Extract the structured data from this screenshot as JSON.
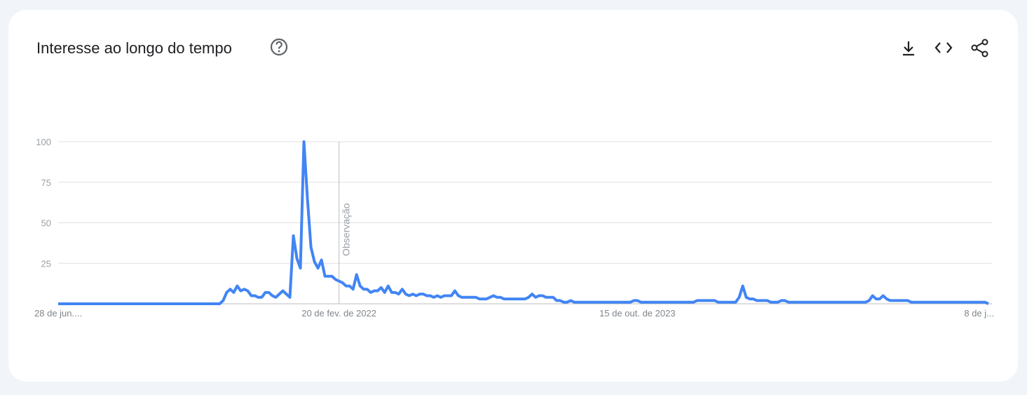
{
  "chart_data": {
    "type": "line",
    "title": "Interesse ao longo do tempo",
    "categories": [
      "28 de jun....",
      null,
      null,
      null,
      null,
      null,
      null,
      null,
      null,
      null,
      null,
      null,
      null,
      null,
      null,
      null,
      null,
      null,
      null,
      null,
      null,
      null,
      null,
      null,
      null,
      null,
      null,
      null,
      null,
      null,
      null,
      null,
      null,
      null,
      null,
      null,
      null,
      null,
      null,
      null,
      null,
      null,
      null,
      null,
      null,
      null,
      null,
      null,
      null,
      null,
      null,
      null,
      null,
      null,
      null,
      null,
      null,
      null,
      null,
      null,
      null,
      null,
      null,
      null,
      null,
      null,
      null,
      null,
      null,
      null,
      null,
      null,
      null,
      null,
      null,
      null,
      null,
      null,
      null,
      null,
      "20 de fev. de 2022",
      null,
      null,
      null,
      null,
      null,
      null,
      null,
      null,
      null,
      null,
      null,
      null,
      null,
      null,
      null,
      null,
      null,
      null,
      null,
      null,
      null,
      null,
      null,
      null,
      null,
      null,
      null,
      null,
      null,
      null,
      null,
      null,
      null,
      null,
      null,
      null,
      null,
      null,
      null,
      null,
      null,
      null,
      null,
      null,
      null,
      null,
      null,
      null,
      null,
      null,
      null,
      null,
      null,
      null,
      null,
      null,
      null,
      null,
      null,
      null,
      null,
      null,
      null,
      null,
      null,
      null,
      null,
      null,
      null,
      null,
      null,
      null,
      null,
      null,
      null,
      null,
      null,
      null,
      null,
      null,
      null,
      null,
      null,
      null,
      "15 de out. de 2023",
      null,
      null,
      null,
      null,
      null,
      null,
      null,
      null,
      null,
      null,
      null,
      null,
      null,
      null,
      null,
      null,
      null,
      null,
      null,
      null,
      null,
      null,
      null,
      null,
      null,
      null,
      null,
      null,
      null,
      null,
      null,
      null,
      null,
      null,
      null,
      null,
      null,
      null,
      null,
      null,
      null,
      null,
      null,
      null,
      null,
      null,
      null,
      null,
      null,
      null,
      null,
      null,
      null,
      null,
      null,
      null,
      null,
      null,
      null,
      null,
      null,
      null,
      null,
      null,
      null,
      null,
      null,
      null,
      null,
      null,
      null,
      null,
      null,
      null,
      null,
      null,
      null,
      null,
      null,
      null,
      null,
      null,
      null,
      null,
      null,
      null,
      null,
      null,
      null,
      null,
      null,
      null,
      null,
      null,
      null,
      null,
      null,
      null,
      null,
      "8 de j..."
    ],
    "series": [
      {
        "name": "Interesse",
        "color": "#4285f4",
        "values": [
          0,
          0,
          0,
          0,
          0,
          0,
          0,
          0,
          0,
          0,
          0,
          0,
          0,
          0,
          0,
          0,
          0,
          0,
          0,
          0,
          0,
          0,
          0,
          0,
          0,
          0,
          0,
          0,
          0,
          0,
          0,
          0,
          0,
          0,
          0,
          0,
          0,
          0,
          0,
          0,
          0,
          0,
          0,
          0,
          0,
          0,
          0,
          2,
          7,
          9,
          7,
          11,
          8,
          9,
          8,
          5,
          5,
          4,
          4,
          7,
          7,
          5,
          4,
          6,
          8,
          6,
          4,
          42,
          28,
          22,
          100,
          65,
          35,
          26,
          22,
          27,
          17,
          17,
          17,
          15,
          14,
          13,
          11,
          11,
          9,
          18,
          11,
          9,
          9,
          7,
          8,
          8,
          10,
          7,
          11,
          7,
          7,
          6,
          9,
          6,
          5,
          6,
          5,
          6,
          6,
          5,
          5,
          4,
          5,
          4,
          5,
          5,
          5,
          8,
          5,
          4,
          4,
          4,
          4,
          4,
          3,
          3,
          3,
          4,
          5,
          4,
          4,
          3,
          3,
          3,
          3,
          3,
          3,
          3,
          4,
          6,
          4,
          5,
          5,
          4,
          4,
          4,
          2,
          2,
          1,
          1,
          2,
          1,
          1,
          1,
          1,
          1,
          1,
          1,
          1,
          1,
          1,
          1,
          1,
          1,
          1,
          1,
          1,
          1,
          2,
          2,
          1,
          1,
          1,
          1,
          1,
          1,
          1,
          1,
          1,
          1,
          1,
          1,
          1,
          1,
          1,
          1,
          2,
          2,
          2,
          2,
          2,
          2,
          1,
          1,
          1,
          1,
          1,
          1,
          4,
          11,
          4,
          3,
          3,
          2,
          2,
          2,
          2,
          1,
          1,
          1,
          2,
          2,
          1,
          1,
          1,
          1,
          1,
          1,
          1,
          1,
          1,
          1,
          1,
          1,
          1,
          1,
          1,
          1,
          1,
          1,
          1,
          1,
          1,
          1,
          1,
          2,
          5,
          3,
          3,
          5,
          3,
          2,
          2,
          2,
          2,
          2,
          2,
          1,
          1,
          1,
          1,
          1,
          1,
          1,
          1,
          1,
          1,
          1,
          1,
          1,
          1,
          1,
          1,
          1,
          1,
          1,
          1,
          1,
          1,
          0
        ]
      }
    ],
    "ylim": [
      0,
      100
    ],
    "yticks": [
      25,
      50,
      75,
      100
    ],
    "grid": true,
    "annotation": {
      "text": "Observação",
      "at": 80
    }
  }
}
